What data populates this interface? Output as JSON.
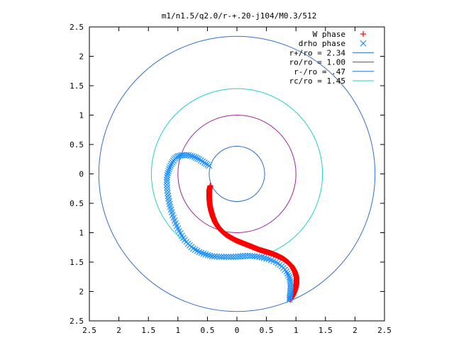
{
  "chart_data": {
    "type": "scatter",
    "title": "m1/n1.5/q2.0/r-+.20-j104/M0.3/512",
    "xlabel": "",
    "ylabel": "",
    "xlim": [
      -2.5,
      2.5
    ],
    "ylim": [
      -2.5,
      2.5
    ],
    "x_ticks": [
      "2.5",
      "2",
      "1.5",
      "1",
      "0.5",
      "0",
      "0.5",
      "1",
      "1.5",
      "2",
      "2.5"
    ],
    "y_ticks": [
      "2.5",
      "2",
      "1.5",
      "1",
      "0.5",
      "0",
      "0.5",
      "1",
      "1.5",
      "2",
      "2.5"
    ],
    "grid": false,
    "legend_position": "top-right",
    "circles": [
      {
        "label": "r+/ro = 2.34",
        "radius": 2.34,
        "color": "#3070d0"
      },
      {
        "label": "ro/ro = 1.00",
        "radius": 1.0,
        "color": "#a020a0"
      },
      {
        "label": "r-/ro = .47",
        "radius": 0.47,
        "color": "#3070d0"
      },
      {
        "label": "rc/ro = 1.45",
        "radius": 1.45,
        "color": "#20d0d0"
      }
    ],
    "series": [
      {
        "name": "W phase",
        "marker": "+",
        "color": "#ff0000",
        "points": [
          [
            -0.45,
            -0.2
          ],
          [
            -0.47,
            -0.28
          ],
          [
            -0.47,
            -0.4
          ],
          [
            -0.46,
            -0.52
          ],
          [
            -0.44,
            -0.62
          ],
          [
            -0.41,
            -0.72
          ],
          [
            -0.37,
            -0.82
          ],
          [
            -0.32,
            -0.9
          ],
          [
            -0.26,
            -0.97
          ],
          [
            -0.19,
            -1.03
          ],
          [
            -0.11,
            -1.08
          ],
          [
            -0.02,
            -1.13
          ],
          [
            0.08,
            -1.17
          ],
          [
            0.18,
            -1.21
          ],
          [
            0.28,
            -1.25
          ],
          [
            0.38,
            -1.29
          ],
          [
            0.48,
            -1.32
          ],
          [
            0.58,
            -1.35
          ],
          [
            0.68,
            -1.39
          ],
          [
            0.78,
            -1.44
          ],
          [
            0.86,
            -1.5
          ],
          [
            0.93,
            -1.57
          ],
          [
            0.98,
            -1.66
          ],
          [
            1.01,
            -1.76
          ],
          [
            1.01,
            -1.86
          ],
          [
            0.99,
            -1.96
          ],
          [
            0.95,
            -2.06
          ],
          [
            0.9,
            -2.14
          ]
        ]
      },
      {
        "name": "drho phase",
        "marker": "x",
        "color": "#1e90ff",
        "points": [
          [
            -0.47,
            0.14
          ],
          [
            -0.55,
            0.19
          ],
          [
            -0.64,
            0.25
          ],
          [
            -0.72,
            0.29
          ],
          [
            -0.82,
            0.32
          ],
          [
            -0.92,
            0.32
          ],
          [
            -1.0,
            0.3
          ],
          [
            -1.06,
            0.25
          ],
          [
            -1.11,
            0.17
          ],
          [
            -1.15,
            0.08
          ],
          [
            -1.18,
            -0.02
          ],
          [
            -1.19,
            -0.14
          ],
          [
            -1.18,
            -0.28
          ],
          [
            -1.16,
            -0.42
          ],
          [
            -1.13,
            -0.56
          ],
          [
            -1.09,
            -0.7
          ],
          [
            -1.04,
            -0.84
          ],
          [
            -0.98,
            -0.97
          ],
          [
            -0.91,
            -1.09
          ],
          [
            -0.83,
            -1.19
          ],
          [
            -0.74,
            -1.27
          ],
          [
            -0.64,
            -1.33
          ],
          [
            -0.53,
            -1.37
          ],
          [
            -0.42,
            -1.4
          ],
          [
            -0.3,
            -1.41
          ],
          [
            -0.18,
            -1.41
          ],
          [
            -0.06,
            -1.41
          ],
          [
            0.06,
            -1.4
          ],
          [
            0.18,
            -1.39
          ],
          [
            0.3,
            -1.4
          ],
          [
            0.42,
            -1.42
          ],
          [
            0.54,
            -1.45
          ],
          [
            0.66,
            -1.5
          ],
          [
            0.76,
            -1.57
          ],
          [
            0.84,
            -1.66
          ],
          [
            0.89,
            -1.76
          ],
          [
            0.91,
            -1.86
          ],
          [
            0.91,
            -1.96
          ],
          [
            0.9,
            -2.06
          ],
          [
            0.89,
            -2.14
          ]
        ]
      }
    ]
  }
}
